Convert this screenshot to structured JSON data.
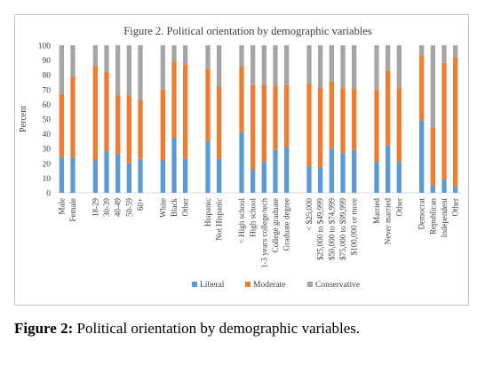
{
  "chart_data": {
    "type": "bar",
    "stacked": true,
    "title": "Figure 2. Political orientation by demographic variables",
    "ylabel": "Percent",
    "ylim": [
      0,
      100
    ],
    "yticks": [
      0,
      10,
      20,
      30,
      40,
      50,
      60,
      70,
      80,
      90,
      100
    ],
    "grid": false,
    "legend_position": "bottom",
    "series_colors": [
      "#5b9bd5",
      "#ed7d31",
      "#a5a5a5"
    ],
    "groups": [
      {
        "categories": [
          "Male",
          "Female"
        ]
      },
      {
        "categories": [
          "18-29",
          "30-39",
          "40-49",
          "50-59",
          "60+"
        ]
      },
      {
        "categories": [
          "White",
          "Black",
          "Other"
        ]
      },
      {
        "categories": [
          "Hispanic",
          "Not Hispanic"
        ]
      },
      {
        "categories": [
          "< High school",
          "High school",
          "1-3 years college/tech",
          "College graduate",
          "Graduate degree"
        ]
      },
      {
        "categories": [
          "< $25,000",
          "$25,000 to $49,999",
          "$50,000 to $74,999",
          "$75,000 to $99,999",
          "$100,000 or more"
        ]
      },
      {
        "categories": [
          "Married",
          "Never married",
          "Other"
        ]
      },
      {
        "categories": [
          "Democrat",
          "Republican",
          "Independent",
          "Other"
        ]
      }
    ],
    "series": [
      {
        "name": "Liberal",
        "values": [
          24,
          24,
          22,
          28,
          26,
          20,
          23,
          22,
          37,
          23,
          35,
          23,
          41,
          16,
          21,
          29,
          31,
          18,
          17,
          30,
          27,
          29,
          21,
          32,
          21,
          49,
          5,
          9,
          4
        ]
      },
      {
        "name": "Moderate",
        "values": [
          43,
          55,
          64,
          54,
          40,
          46,
          40,
          48,
          52,
          64,
          49,
          49,
          45,
          57,
          52,
          43,
          42,
          56,
          54,
          45,
          44,
          42,
          49,
          51,
          50,
          44,
          39,
          79,
          88
        ]
      },
      {
        "name": "Conservative",
        "values": [
          33,
          21,
          14,
          18,
          34,
          34,
          37,
          30,
          11,
          13,
          16,
          28,
          14,
          27,
          27,
          28,
          27,
          26,
          29,
          25,
          29,
          29,
          30,
          17,
          29,
          7,
          56,
          12,
          8
        ]
      }
    ]
  },
  "caption": {
    "label": "Figure 2:",
    "text": " Political orientation by demographic variables."
  }
}
